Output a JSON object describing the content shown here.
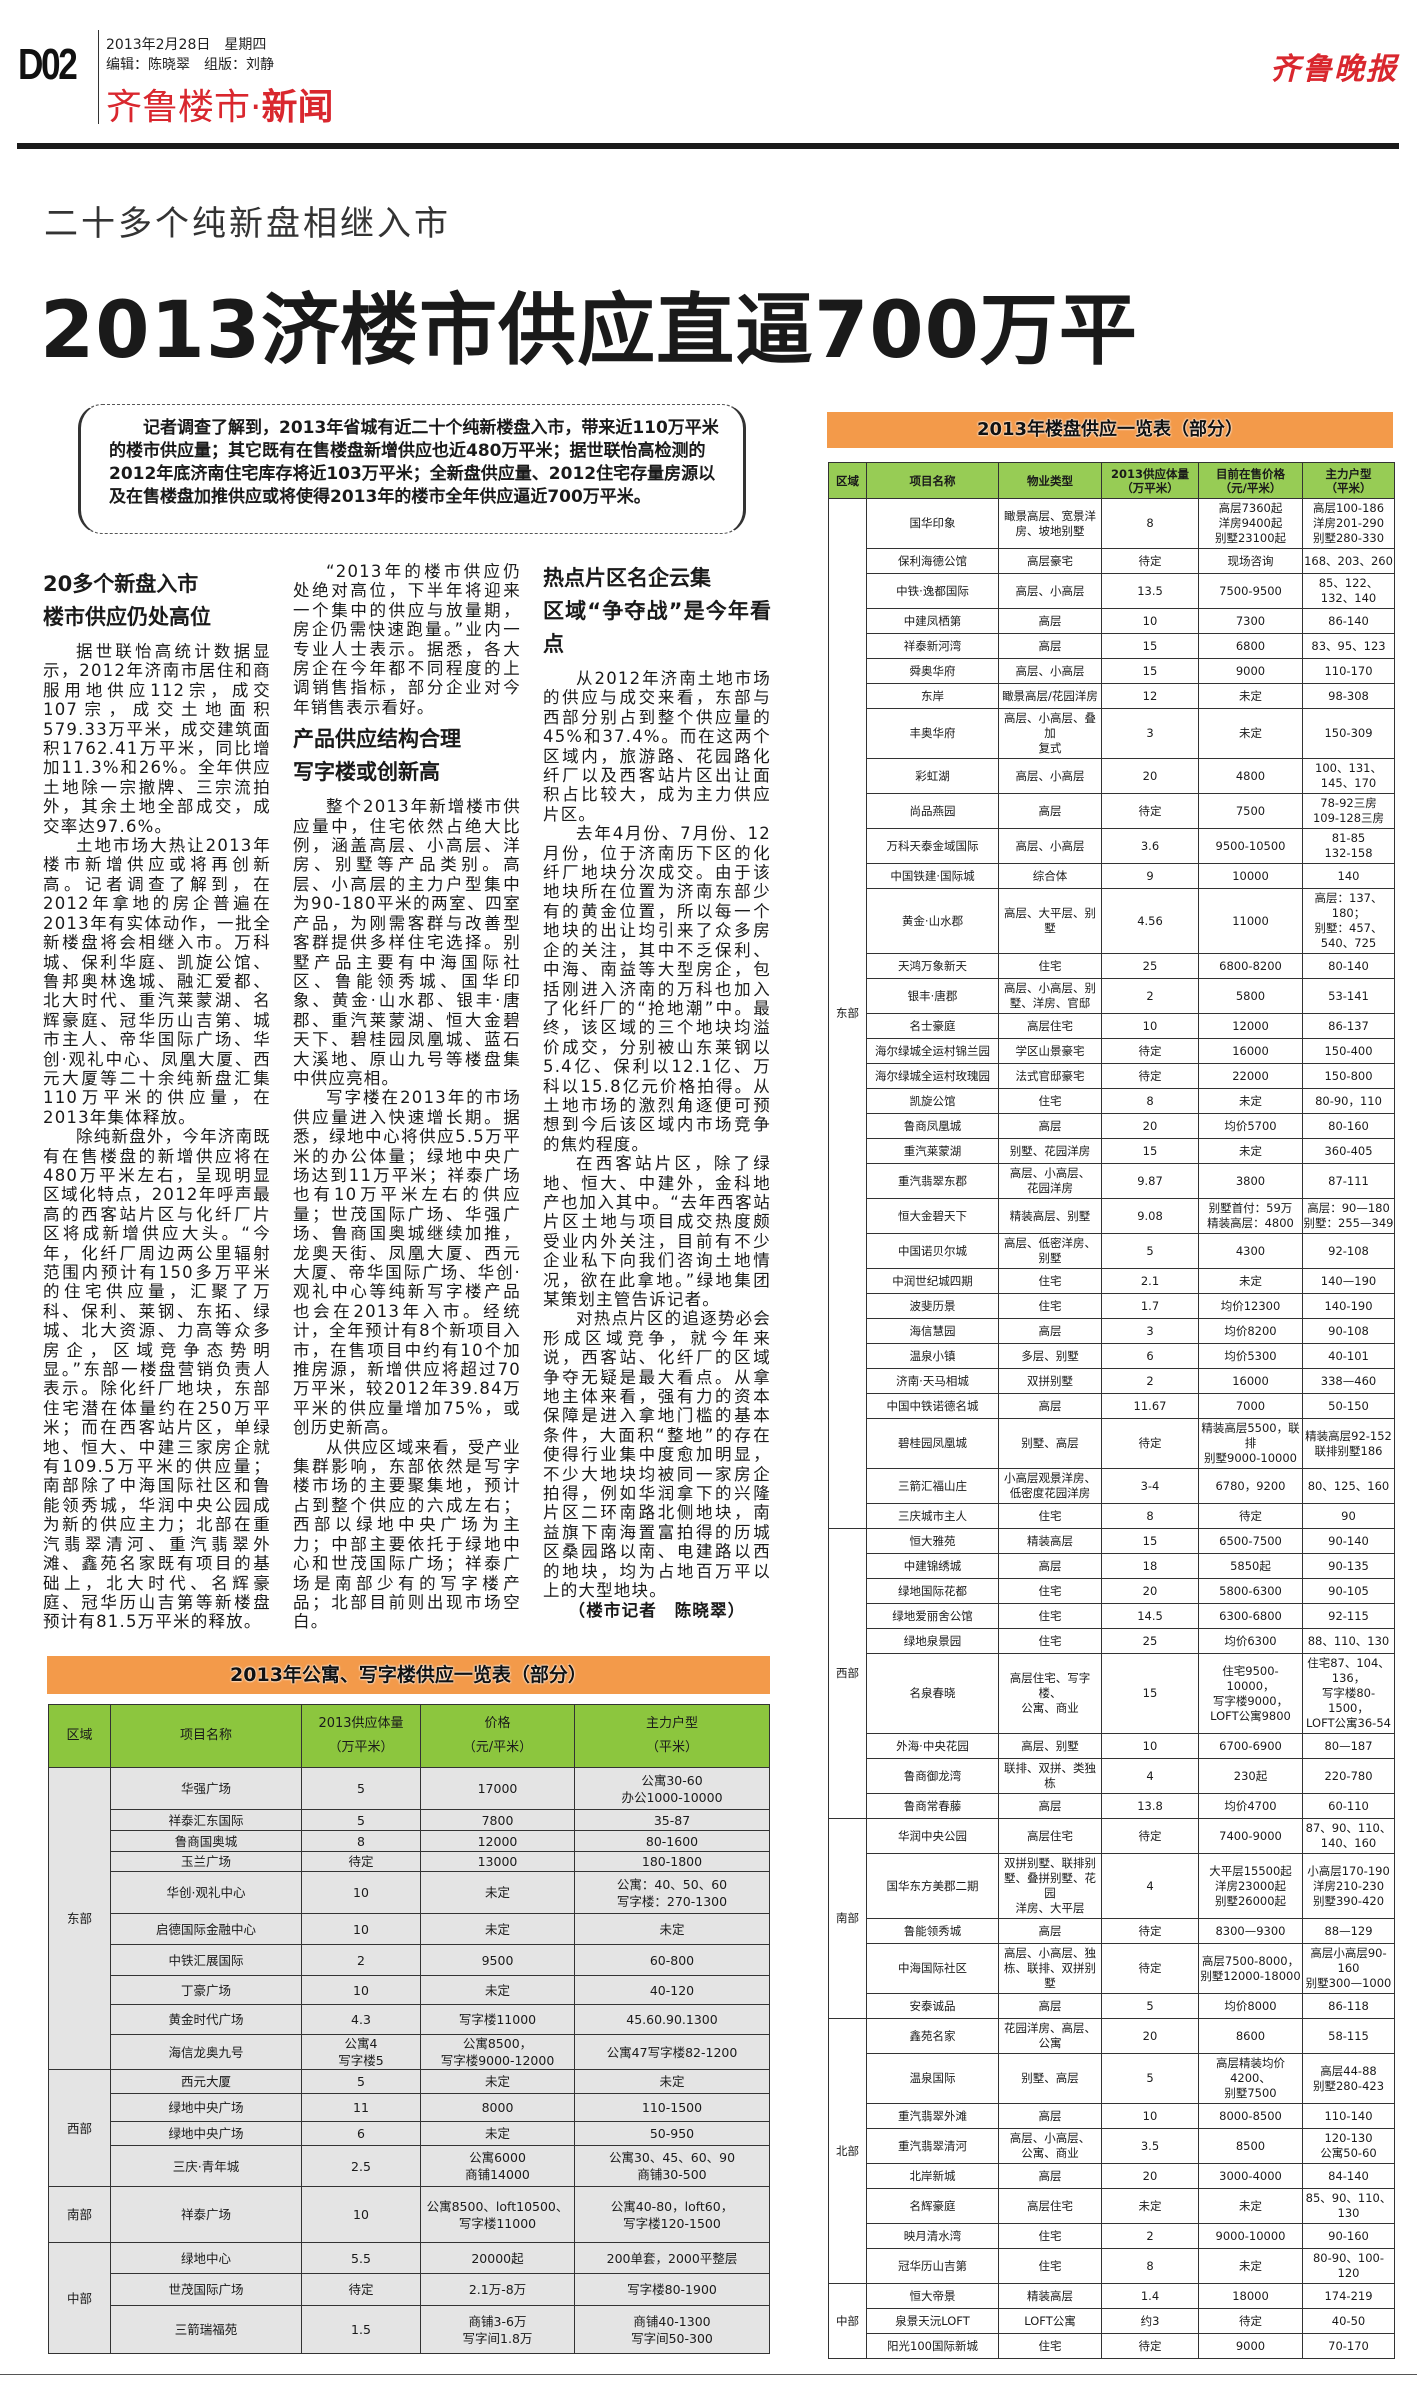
{
  "masthead": {
    "page_number": "D02",
    "date": "2013年2月28日　星期四",
    "editors": "编辑：陈晓翠　组版：刘静",
    "section_light": "齐鲁楼市·",
    "section_bold": "新闻",
    "logo": "齐鲁晚报"
  },
  "article": {
    "subtitle": "二十多个纯新盘相继入市",
    "headline": "2013济楼市供应直逼700万平",
    "intro": "记者调查了解到，2013年省城有近二十个纯新楼盘入市，带来近110万平米的楼市供应量；其它既有在售楼盘新增供应也近480万平米；据世联怡高检测的2012年底济南住宅库存将近103万平米；全新盘供应量、2012住宅存量房源以及在售楼盘加推供应或将使得2013年的楼市全年供应逼近700万平米。",
    "sections": [
      {
        "heading": [
          "20多个新盘入市",
          "楼市供应仍处高位"
        ],
        "paragraphs": [
          "据世联怡高统计数据显示，2012年济南市居住和商服用地供应112宗，成交107宗，成交土地面积579.33万平米，成交建筑面积1762.41万平米，同比增加11.3%和26%。全年供应土地除一宗撤牌、三宗流拍外，其余土地全部成交，成交率达97.6%。",
          "土地市场大热让2013年楼市新增供应或将再创新高。记者调查了解到，在2012年拿地的房企普遍在2013年有实体动作，一批全新楼盘将会相继入市。万科城、保利华庭、凯旋公馆、鲁邦奥林逸城、融汇爱都、北大时代、重汽莱蒙湖、名辉豪庭、冠华历山吉第、城市主人、帝华国际广场、华创·观礼中心、凤凰大厦、西元大厦等二十余纯新盘汇集110万平米的供应量，在2013年集体释放。",
          "除纯新盘外，今年济南既有在售楼盘的新增供应将在480万平米左右，呈现明显区域化特点，2012年呼声最高的西客站片区与化纤厂片区将成新增供应大头。“今年，化纤厂周边两公里辐射范围内预计有150多万平米的住宅供应量，汇聚了万科、保利、莱钢、东拓、绿城、北大资源、力高等众多房企，区域竞争态势明显。”东部一楼盘营销负责人表示。除化纤厂地块，东部住宅潜在体量约在250万平米；而在西客站片区，单绿地、恒大、中建三家房企就有109.5万平米的供应量；南部除了中海国际社区和鲁能领秀城，华润中央公园成为新的供应主力；北部在重汽翡翠清河、重汽翡翠外滩、鑫苑名家既有项目的基础上，北大时代、名辉豪庭、冠华历山吉第等新楼盘预计有81.5万平米的释放。",
          "“2013年的楼市供应仍处绝对高位，下半年将迎来一个集中的供应与放量期，房企仍需快速跑量。”业内一专业人士表示。据悉，各大房企在今年都不同程度的上调销售指标，部分企业对今年销售表示看好。"
        ]
      },
      {
        "heading": [
          "产品供应结构合理",
          "写字楼或创新高"
        ],
        "paragraphs": [
          "整个2013年新增楼市供应量中，住宅依然占绝大比例，涵盖高层、小高层、洋房、别墅等产品类别。高层、小高层的主力户型集中为90-180平米的两室、四室产品，为刚需客群与改善型客群提供多样住宅选择。别墅产品主要有中海国际社区、鲁能领秀城、国华印象、黄金·山水郡、银丰·唐郡、重汽莱蒙湖、恒大金碧天下、碧桂园凤凰城、蓝石大溪地、原山九号等楼盘集中供应亮相。",
          "写字楼在2013年的市场供应量进入快速增长期。据悉，绿地中心将供应5.5万平米的办公体量；绿地中央广场达到11万平米；祥泰广场也有10万平米左右的供应量；世茂国际广场、华强广场、鲁商国奥城继续加推，龙奥天街、凤凰大厦、西元大厦、帝华国际广场、华创·观礼中心等纯新写字楼产品也会在2013年入市。经统计，全年预计有8个新项目入市，在售项目中约有10个加推房源，新增供应将超过70万平米，较2012年39.84万平米的供应量增加75%，或创历史新高。",
          "从供应区域来看，受产业集群影响，东部依然是写字楼市场的主要聚集地，预计占到整个供应的六成左右；西部以绿地中央广场为主力；中部主要依托于绿地中心和世茂国际广场；祥泰广场是南部少有的写字楼产品；北部目前则出现市场空白。"
        ]
      },
      {
        "heading": [
          "热点片区名企云集",
          "区域“争夺战”是今年看点"
        ],
        "paragraphs": [
          "从2012年济南土地市场的供应与成交来看，东部与西部分别占到整个供应量的45%和37.4%。而在这两个区域内，旅游路、花园路化纤厂以及西客站片区出让面积占比较大，成为主力供应片区。",
          "去年4月份、7月份、12月份，位于济南历下区的化纤厂地块分次成交。由于该地块所在位置为济南东部少有的黄金位置，所以每一个地块的出让均引来了众多房企的关注，其中不乏保利、中海、南益等大型房企，包括刚进入济南的万科也加入了化纤厂的“抢地潮”中。最终，该区域的三个地块均溢价成交，分别被山东莱钢以5.4亿、保利以12.1亿、万科以15.8亿元价格拍得。从土地市场的激烈角逐便可预想到今后该区域内市场竞争的焦灼程度。",
          "在西客站片区，除了绿地、恒大、中建外，金科地产也加入其中。“去年西客站片区土地与项目成交热度颇受业内外关注，目前有不少企业私下向我们咨询土地情况，欲在此拿地。”绿地集团某策划主管告诉记者。",
          "对热点片区的追逐势必会形成区域竞争，就今年来说，西客站、化纤厂的区域争夺无疑是最大看点。从拿地主体来看，强有力的资本保障是进入拿地门槛的基本条件，大面积“整地”的存在使得行业集中度愈加明显，不少大地块均被同一家房企拍得，例如华润拿下的兴隆片区二环南路北侧地块，南益旗下南海置富拍得的历城区桑园路以南、电建路以西的地块，均为占地百万平以上的大型地块。"
        ]
      }
    ],
    "byline": "（楼市记者　陈晓翠）"
  },
  "office_table": {
    "title": "2013年公寓、写字楼供应一览表（部分）",
    "headers": [
      "区域",
      "项目名称",
      "2013供应体量\n（万平米）",
      "价格\n（元/平米）",
      "主力户型\n（平米）"
    ],
    "groups": [
      {
        "region": "东部",
        "rows": [
          [
            "华强广场",
            "5",
            "17000",
            "公寓30-60\n办公1000-10000"
          ],
          [
            "祥泰汇东国际",
            "5",
            "7800",
            "35-87"
          ],
          [
            "鲁商国奥城",
            "8",
            "12000",
            "80-1600"
          ],
          [
            "玉兰广场",
            "待定",
            "13000",
            "180-1800"
          ],
          [
            "华创·观礼中心",
            "10",
            "未定",
            "公寓：40、50、60\n写字楼：270-1300"
          ],
          [
            "启德国际金融中心",
            "10",
            "未定",
            "未定"
          ],
          [
            "中铁汇展国际",
            "2",
            "9500",
            "60-800"
          ],
          [
            "丁豪广场",
            "10",
            "未定",
            "40-120"
          ],
          [
            "黄金时代广场",
            "4.3",
            "写字楼11000",
            "45.60.90.1300"
          ],
          [
            "海信龙奥九号",
            "公寓4\n写字楼5",
            "公寓8500，\n写字楼9000-12000",
            "公寓47写字楼82-1200"
          ]
        ]
      },
      {
        "region": "西部",
        "rows": [
          [
            "西元大厦",
            "5",
            "未定",
            "未定"
          ],
          [
            "绿地中央广场",
            "11",
            "8000",
            "110-1500"
          ],
          [
            "绿地中央广场",
            "6",
            "未定",
            "50-950"
          ],
          [
            "三庆·青年城",
            "2.5",
            "公寓6000\n商铺14000",
            "公寓30、45、60、90\n商铺30-500"
          ]
        ]
      },
      {
        "region": "南部",
        "rows": [
          [
            "祥泰广场",
            "10",
            "公寓8500、loft10500、\n写字楼11000",
            "公寓40-80，loft60，\n写字楼120-1500"
          ]
        ]
      },
      {
        "region": "中部",
        "rows": [
          [
            "绿地中心",
            "5.5",
            "20000起",
            "200单套，2000平整层"
          ],
          [
            "世茂国际广场",
            "待定",
            "2.1万-8万",
            "写字楼80-1900"
          ],
          [
            "三箭瑞福苑",
            "1.5",
            "商铺3-6万\n写字间1.8万",
            "商铺40-1300\n写字间50-300"
          ]
        ]
      }
    ]
  },
  "residential_table": {
    "title": "2013年楼盘供应一览表（部分）",
    "headers": [
      "区域",
      "项目名称",
      "物业类型",
      "2013供应体量\n（万平米）",
      "目前在售价格\n（元/平米）",
      "主力户型\n（平米）"
    ],
    "groups": [
      {
        "region": "东部",
        "rows": [
          [
            "国华印象",
            "瞰景高层、宽景洋\n房、坡地别墅",
            "8",
            "高层7360起\n洋房9400起\n别墅23100起",
            "高层100-186\n洋房201-290\n别墅280-330"
          ],
          [
            "保利海德公馆",
            "高层豪宅",
            "待定",
            "现场咨询",
            "168、203、260"
          ],
          [
            "中铁·逸都国际",
            "高层、小高层",
            "13.5",
            "7500-9500",
            "85、122、132、140"
          ],
          [
            "中建凤栖第",
            "高层",
            "10",
            "7300",
            "86-140"
          ],
          [
            "祥泰新河湾",
            "高层",
            "15",
            "6800",
            "83、95、123"
          ],
          [
            "舜奥华府",
            "高层、小高层",
            "15",
            "9000",
            "110-170"
          ],
          [
            "东岸",
            "瞰景高层/花园洋房",
            "12",
            "未定",
            "98-308"
          ],
          [
            "丰奥华府",
            "高层、小高层、叠加\n复式",
            "3",
            "未定",
            "150-309"
          ],
          [
            "彩虹湖",
            "高层、小高层",
            "20",
            "4800",
            "100、131、145、170"
          ],
          [
            "尚品燕园",
            "高层",
            "待定",
            "7500",
            "78-92三房\n109-128三房"
          ],
          [
            "万科天泰金域国际",
            "高层、小高层",
            "3.6",
            "9500-10500",
            "81-85\n132-158"
          ],
          [
            "中国铁建·国际城",
            "综合体",
            "9",
            "10000",
            "140"
          ],
          [
            "黄金·山水郡",
            "高层、大平层、别墅",
            "4.56",
            "11000",
            "高层：137、180；\n别墅：457、540、725"
          ],
          [
            "天鸿万象新天",
            "住宅",
            "25",
            "6800-8200",
            "80-140"
          ],
          [
            "银丰·唐郡",
            "高层、小高层、别\n墅、洋房、官邸",
            "2",
            "5800",
            "53-141"
          ],
          [
            "名士豪庭",
            "高层住宅",
            "10",
            "12000",
            "86-137"
          ],
          [
            "海尔绿城全运村锦兰园",
            "学区山景豪宅",
            "待定",
            "16000",
            "150-400"
          ],
          [
            "海尔绿城全运村玫瑰园",
            "法式官邸豪宅",
            "待定",
            "22000",
            "150-800"
          ],
          [
            "凯旋公馆",
            "住宅",
            "8",
            "未定",
            "80-90，110"
          ],
          [
            "鲁商凤凰城",
            "高层",
            "20",
            "均价5700",
            "80-160"
          ],
          [
            "重汽莱蒙湖",
            "别墅、花园洋房",
            "15",
            "未定",
            "360-405"
          ],
          [
            "重汽翡翠东郡",
            "高层、小高层、\n花园洋房",
            "9.87",
            "3800",
            "87-111"
          ],
          [
            "恒大金碧天下",
            "精装高层、别墅",
            "9.08",
            "别墅首付：59万\n精装高层：4800",
            "高层：90—180\n别墅：255—349"
          ],
          [
            "中国诺贝尔城",
            "高层、低密洋房、别墅",
            "5",
            "4300",
            "92-108"
          ],
          [
            "中润世纪城四期",
            "住宅",
            "2.1",
            "未定",
            "140—190"
          ],
          [
            "波斐历景",
            "住宅",
            "1.7",
            "均价12300",
            "140-190"
          ],
          [
            "海信慧园",
            "高层",
            "3",
            "均价8200",
            "90-108"
          ],
          [
            "温泉小镇",
            "多层、别墅",
            "6",
            "均价5300",
            "40-101"
          ],
          [
            "济南·天马相城",
            "双拼别墅",
            "2",
            "16000",
            "338—460"
          ],
          [
            "中国中铁诺德名城",
            "高层",
            "11.67",
            "7000",
            "50-150"
          ],
          [
            "碧桂园凤凰城",
            "别墅、高层",
            "待定",
            "精装高层5500，联排\n别墅9000-10000",
            "精装高层92-152\n联排别墅186"
          ],
          [
            "三箭汇福山庄",
            "小高层观景洋房、\n低密度花园洋房",
            "3-4",
            "6780，9200",
            "80、125、160"
          ],
          [
            "三庆城市主人",
            "住宅",
            "8",
            "待定",
            "90"
          ]
        ]
      },
      {
        "region": "西部",
        "rows": [
          [
            "恒大雅苑",
            "精装高层",
            "15",
            "6500-7500",
            "90-140"
          ],
          [
            "中建锦绣城",
            "高层",
            "18",
            "5850起",
            "90-135"
          ],
          [
            "绿地国际花都",
            "住宅",
            "20",
            "5800-6300",
            "90-105"
          ],
          [
            "绿地爱丽舍公馆",
            "住宅",
            "14.5",
            "6300-6800",
            "92-115"
          ],
          [
            "绿地泉景园",
            "住宅",
            "25",
            "均价6300",
            "88、110、130"
          ],
          [
            "名泉春晓",
            "高层住宅、写字楼、\n公寓、商业",
            "15",
            "住宅9500-10000，\n写字楼9000，\nLOFT公寓9800",
            "住宅87、104、136，\n写字楼80-1500，\nLOFT公寓36-54"
          ],
          [
            "外海·中央花园",
            "高层、别墅",
            "10",
            "6700-6900",
            "80—187"
          ],
          [
            "鲁商御龙湾",
            "联排、双拼、类独栋",
            "4",
            "230起",
            "220-780"
          ],
          [
            "鲁商常春藤",
            "高层",
            "13.8",
            "均价4700",
            "60-110"
          ]
        ]
      },
      {
        "region": "南部",
        "rows": [
          [
            "华润中央公园",
            "高层住宅",
            "待定",
            "7400-9000",
            "87、90、110、140、160"
          ],
          [
            "国华东方美郡二期",
            "双拼别墅、联排别\n墅、叠拼别墅、花园\n洋房、大平层",
            "4",
            "大平层15500起\n洋房23000起\n别墅26000起",
            "小高层170-190\n洋房210-230\n别墅390-420"
          ],
          [
            "鲁能领秀城",
            "高层",
            "待定",
            "8300—9300",
            "88—129"
          ],
          [
            "中海国际社区",
            "高层、小高层、独\n栋、联排、双拼别墅",
            "待定",
            "高层7500-8000，\n别墅12000-18000",
            "高层小高层90-160\n别墅300—1000"
          ],
          [
            "安泰诚品",
            "高层",
            "5",
            "均价8000",
            "86-118"
          ]
        ]
      },
      {
        "region": "北部",
        "rows": [
          [
            "鑫苑名家",
            "花园洋房、高层、\n公寓",
            "20",
            "8600",
            "58-115"
          ],
          [
            "温泉国际",
            "别墅、高层",
            "5",
            "高层精装均价4200、\n别墅7500",
            "高层44-88\n别墅280-423"
          ],
          [
            "重汽翡翠外滩",
            "高层",
            "10",
            "8000-8500",
            "110-140"
          ],
          [
            "重汽翡翠清河",
            "高层、小高层、\n公寓、商业",
            "3.5",
            "8500",
            "120-130\n公寓50-60"
          ],
          [
            "北岸新城",
            "高层",
            "20",
            "3000-4000",
            "84-140"
          ],
          [
            "名辉豪庭",
            "高层住宅",
            "未定",
            "未定",
            "85、90、110、130"
          ],
          [
            "映月清水湾",
            "住宅",
            "2",
            "9000-10000",
            "90-160"
          ],
          [
            "冠华历山吉第",
            "住宅",
            "8",
            "未定",
            "80-90、100-120"
          ]
        ]
      },
      {
        "region": "中部",
        "rows": [
          [
            "恒大帝景",
            "精装高层",
            "1.4",
            "18000",
            "174-219"
          ],
          [
            "泉景天沅LOFT",
            "LOFT公寓",
            "约3",
            "待定",
            "40-50"
          ],
          [
            "阳光100国际新城",
            "住宅",
            "待定",
            "9000",
            "70-170"
          ]
        ]
      }
    ]
  }
}
